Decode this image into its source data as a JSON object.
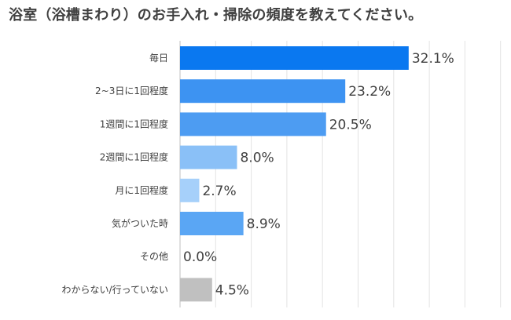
{
  "title": "浴室（浴槽まわり）のお手入れ・掃除の頻度を教えてください。",
  "chart_data": {
    "type": "bar",
    "orientation": "horizontal",
    "title": "浴室（浴槽まわり）のお手入れ・掃除の頻度を教えてください。",
    "categories": [
      "毎日",
      "2~3日に1回程度",
      "1週間に1回程度",
      "2週間に1回程度",
      "月に1回程度",
      "気がついた時",
      "その他",
      "わからない/行っていない"
    ],
    "values": [
      32.1,
      23.2,
      20.5,
      8.0,
      2.7,
      8.9,
      0.0,
      4.5
    ],
    "value_labels": [
      "32.1%",
      "23.2%",
      "20.5%",
      "8.0%",
      "2.7%",
      "8.9%",
      "0.0%",
      "4.5%"
    ],
    "colors": [
      "#0a78f0",
      "#3d93f2",
      "#4d9cf2",
      "#8ac0f7",
      "#a6d0fa",
      "#5aa6f4",
      "#5aa6f4",
      "#c0c0c0"
    ],
    "xlim": [
      0,
      45
    ],
    "grid": true,
    "xlabel": "",
    "ylabel": ""
  }
}
